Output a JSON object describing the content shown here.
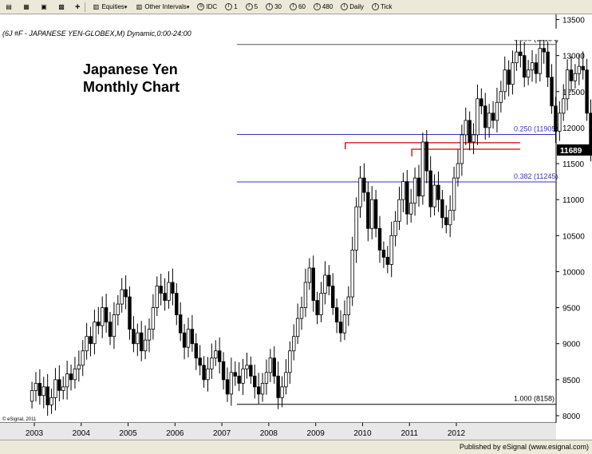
{
  "toolbar": {
    "items": [
      {
        "name": "equities-dropdown",
        "label": "Equities"
      },
      {
        "name": "intervals-dropdown",
        "label": "Other Intervals"
      },
      {
        "name": "interval-idc",
        "prefix": "S",
        "label": "IDC"
      },
      {
        "name": "interval-1",
        "prefix": "I",
        "label": "1"
      },
      {
        "name": "interval-5",
        "prefix": "I",
        "label": "5"
      },
      {
        "name": "interval-30",
        "prefix": "I",
        "label": "30"
      },
      {
        "name": "interval-60",
        "prefix": "I",
        "label": "60"
      },
      {
        "name": "interval-480",
        "prefix": "I",
        "label": "480"
      },
      {
        "name": "interval-daily",
        "prefix": "I",
        "label": "Daily"
      },
      {
        "name": "interval-tick",
        "prefix": "I",
        "label": "Tick"
      }
    ]
  },
  "window_title": "(6J #F - JAPANESE YEN-GLOBEX,M) Dynamic,0:00-24:00",
  "footer": "Published by eSignal (www.esignal.com)",
  "chart_data": {
    "type": "candlestick",
    "title": "Japanese Yen Monthly Chart",
    "title_lines": [
      "Japanese Yen",
      "Monthly Chart"
    ],
    "copyright": "© eSignal, 2011",
    "ylim": [
      7900,
      13550
    ],
    "yticks": [
      8000,
      8500,
      9000,
      9500,
      10000,
      10500,
      11000,
      11500,
      12000,
      12500,
      13000,
      13500
    ],
    "xticks": [
      "2003",
      "2004",
      "2005",
      "2006",
      "2007",
      "2008",
      "2009",
      "2010",
      "2011",
      "2012"
    ],
    "start_year": 2002.95,
    "current_price": "11689",
    "fib_levels": [
      {
        "label": "0.000 (13154)",
        "value": 13154,
        "x_start_year": 2007.32,
        "color": "#555555"
      },
      {
        "label": "0.250 (11905)",
        "value": 11905,
        "x_start_year": 2007.32,
        "color": "#3333cc"
      },
      {
        "label": "0.382 (11245)",
        "value": 11245,
        "x_start_year": 2007.32,
        "color": "#3333cc"
      },
      {
        "label": "1.000 (8158)",
        "value": 8158,
        "x_start_year": 2007.32,
        "color": "#000000"
      }
    ],
    "red_lines": [
      {
        "x_start_year": 2009.63,
        "x_end_year": 2012.68,
        "value": 11790
      },
      {
        "x_start_year": 2011.05,
        "x_end_year": 2012.68,
        "value": 11700
      }
    ],
    "closes": [
      8350,
      8450,
      8280,
      8400,
      8150,
      8250,
      8500,
      8350,
      8400,
      8580,
      8500,
      8650,
      8700,
      8900,
      9100,
      9000,
      9300,
      9250,
      9500,
      9300,
      9100,
      9400,
      9550,
      9750,
      9650,
      9200,
      9000,
      9150,
      8900,
      9050,
      9200,
      9500,
      9800,
      9700,
      9600,
      9850,
      9700,
      9400,
      9150,
      8950,
      9200,
      9000,
      8800,
      8700,
      8500,
      8650,
      8800,
      8900,
      8750,
      8500,
      8300,
      8600,
      8550,
      8450,
      8650,
      8700,
      8550,
      8400,
      8300,
      8450,
      8600,
      8800,
      8550,
      8250,
      8400,
      8600,
      8900,
      9100,
      9350,
      9500,
      9850,
      10050,
      9600,
      9400,
      9700,
      9950,
      9800,
      9500,
      9300,
      9150,
      9400,
      9650,
      10300,
      10900,
      11300,
      11100,
      10600,
      11000,
      10600,
      10300,
      10200,
      10100,
      10500,
      10700,
      11000,
      11250,
      10800,
      10950,
      11300,
      11050,
      11800,
      11400,
      10900,
      11200,
      11000,
      10750,
      10650,
      10850,
      11300,
      11500,
      11900,
      12100,
      11800,
      11900,
      12400,
      12300,
      12000,
      12200,
      12100,
      12350,
      12500,
      12800,
      12600,
      12900,
      13050,
      13000,
      12700,
      12800,
      12900,
      12750,
      13100,
      13050,
      12700,
      12300,
      11950,
      12200,
      12400,
      12800,
      12650,
      12750,
      12850,
      12800,
      12200,
      11689
    ],
    "opens": [
      8200,
      8350,
      8450,
      8280,
      8400,
      8150,
      8250,
      8500,
      8350,
      8400,
      8580,
      8500,
      8650,
      8700,
      8900,
      9100,
      9000,
      9300,
      9250,
      9500,
      9300,
      9100,
      9400,
      9550,
      9750,
      9650,
      9200,
      9000,
      9150,
      8900,
      9050,
      9200,
      9500,
      9800,
      9700,
      9600,
      9850,
      9700,
      9400,
      9150,
      8950,
      9200,
      9000,
      8800,
      8700,
      8500,
      8650,
      8800,
      8900,
      8750,
      8500,
      8300,
      8600,
      8550,
      8450,
      8650,
      8700,
      8550,
      8400,
      8300,
      8450,
      8600,
      8800,
      8550,
      8250,
      8400,
      8600,
      8900,
      9100,
      9350,
      9500,
      9850,
      10050,
      9600,
      9400,
      9700,
      9950,
      9800,
      9500,
      9300,
      9150,
      9400,
      9650,
      10300,
      10900,
      11300,
      11100,
      10600,
      11000,
      10600,
      10300,
      10200,
      10100,
      10500,
      10700,
      11000,
      11250,
      10800,
      10950,
      11300,
      11050,
      11800,
      11400,
      10900,
      11200,
      11000,
      10750,
      10650,
      10850,
      11300,
      11500,
      11900,
      12100,
      11800,
      11900,
      12400,
      12300,
      12000,
      12200,
      12100,
      12350,
      12500,
      12800,
      12600,
      12900,
      13050,
      13000,
      12700,
      12800,
      12900,
      12750,
      13100,
      13050,
      12700,
      12300,
      11950,
      12200,
      12400,
      12800,
      12650,
      12750,
      12850,
      12800,
      12200
    ]
  }
}
